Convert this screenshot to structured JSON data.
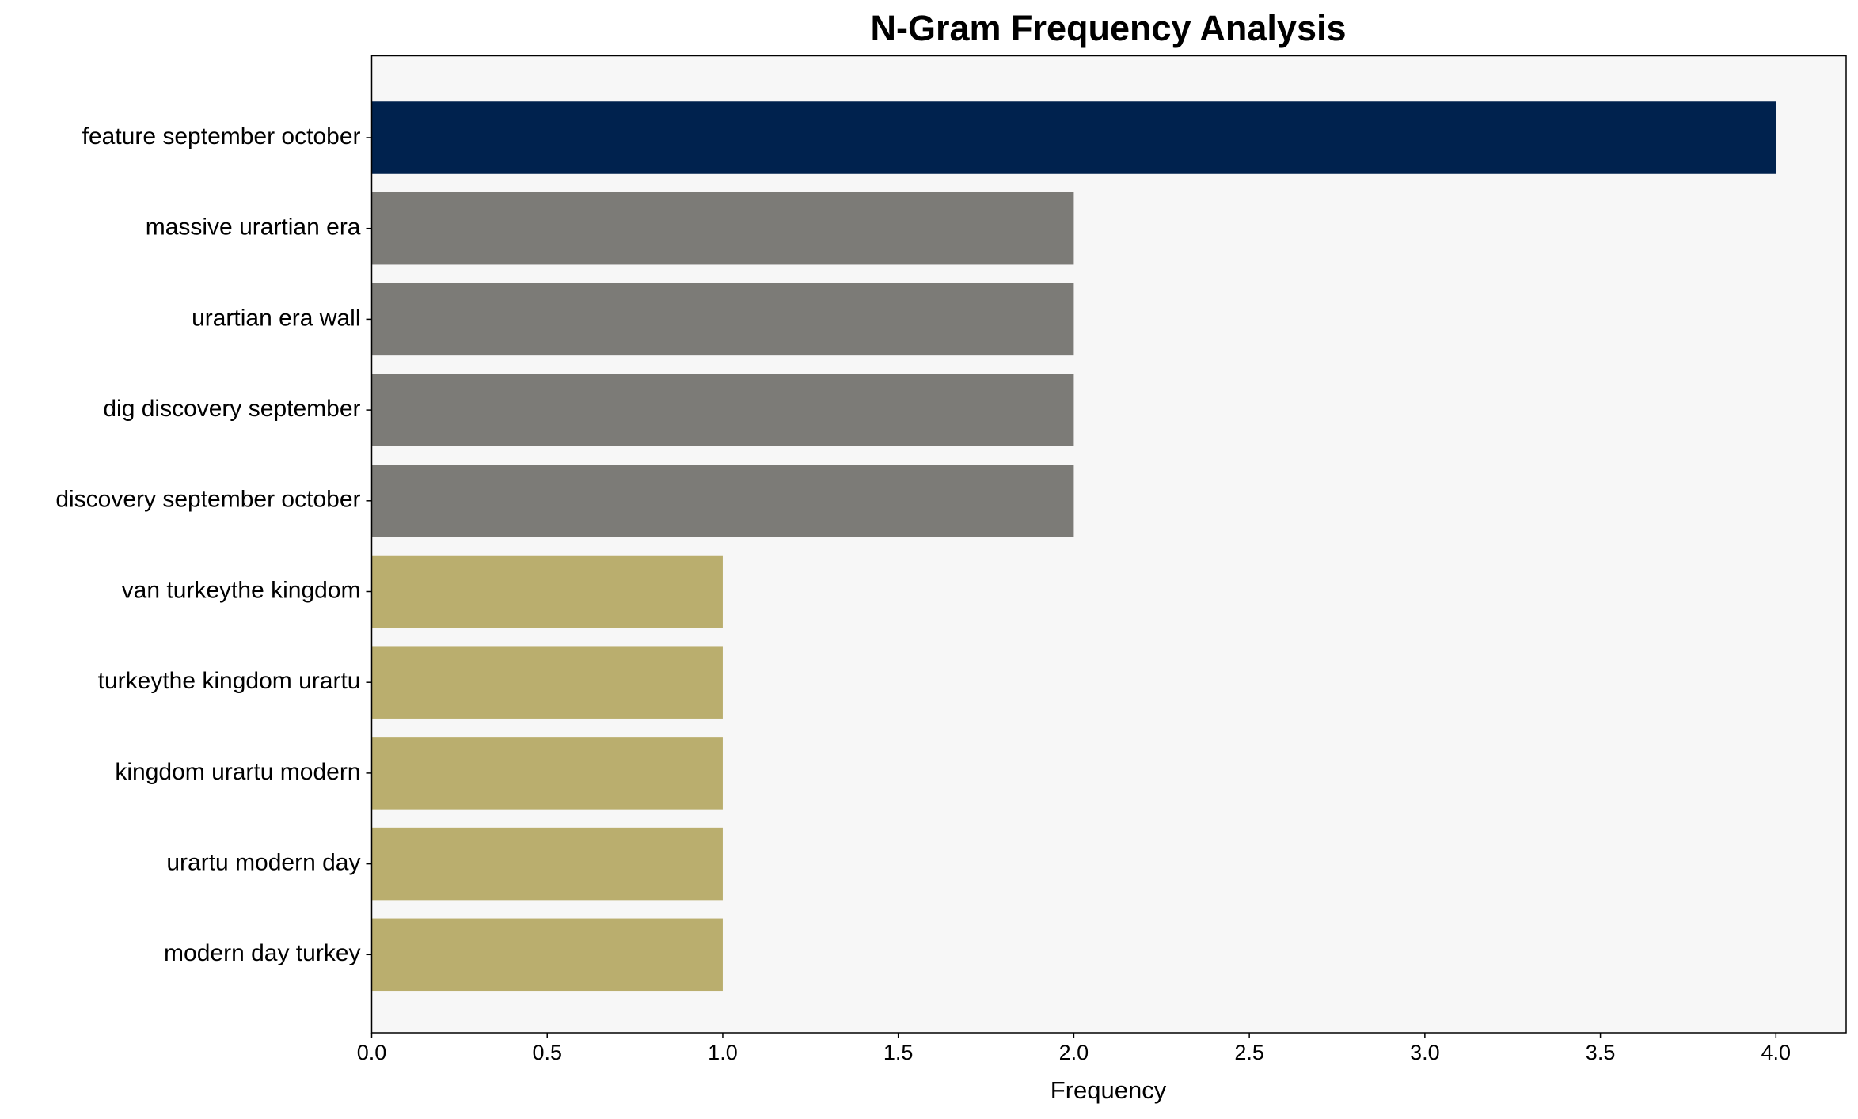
{
  "chart_data": {
    "type": "barh",
    "title": "N-Gram Frequency Analysis",
    "xlabel": "Frequency",
    "categories": [
      "feature september october",
      "massive urartian era",
      "urartian era wall",
      "dig discovery september",
      "discovery september october",
      "van turkeythe kingdom",
      "turkeythe kingdom urartu",
      "kingdom urartu modern",
      "urartu modern day",
      "modern day turkey"
    ],
    "values": [
      4,
      2,
      2,
      2,
      2,
      1,
      1,
      1,
      1,
      1
    ],
    "colors": [
      "#00224e",
      "#7c7b77",
      "#7c7b77",
      "#7c7b77",
      "#7c7b77",
      "#baae6e",
      "#baae6e",
      "#baae6e",
      "#baae6e",
      "#baae6e"
    ],
    "xlim": [
      0,
      4.2
    ],
    "xticks": [
      {
        "value": 0,
        "label": "0.0"
      },
      0.5,
      {
        "value": 1,
        "label": "1.0"
      },
      1.5,
      {
        "value": 2,
        "label": "2.0"
      },
      2.5,
      {
        "value": 3,
        "label": "3.0"
      },
      3.5,
      {
        "value": 4,
        "label": "4.0"
      }
    ]
  }
}
